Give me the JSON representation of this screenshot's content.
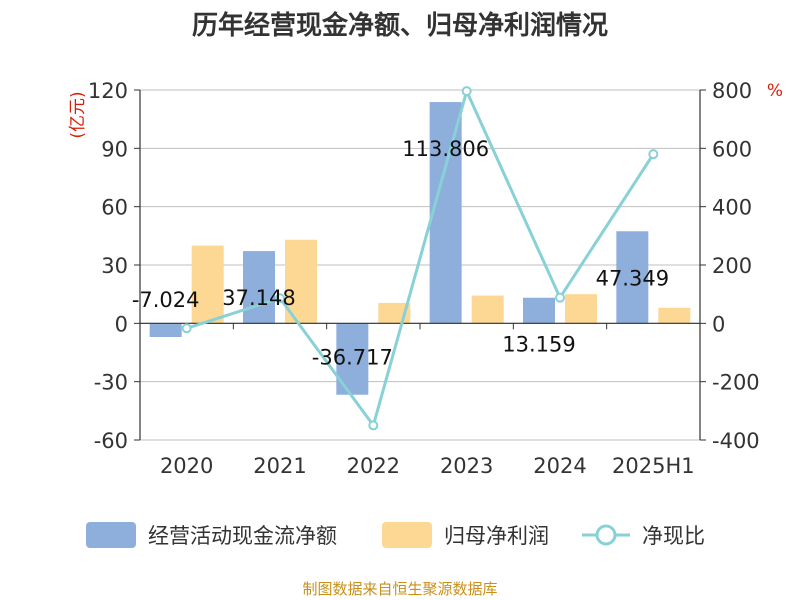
{
  "title": "历年经营现金净额、归母净利润情况",
  "source": "制图数据来自恒生聚源数据库",
  "colors": {
    "cashflow": "#8eaedb",
    "profit": "#fdd794",
    "ratio": "#88d1d6",
    "unit": "#d81e06",
    "title": "#333333",
    "source": "#c8901a"
  },
  "chart_data": {
    "type": "bar",
    "categories": [
      "2020",
      "2021",
      "2022",
      "2023",
      "2024",
      "2025H1"
    ],
    "series": [
      {
        "name": "经营活动现金流净额",
        "type": "bar",
        "axis": "left",
        "values": [
          -7.024,
          37.148,
          -36.717,
          113.806,
          13.159,
          47.349
        ],
        "value_labels": [
          "-7.024",
          "37.148",
          "-36.717",
          "113.806",
          "13.159",
          "47.349"
        ]
      },
      {
        "name": "归母净利润",
        "type": "bar",
        "axis": "left",
        "values": [
          40.0,
          43.0,
          10.5,
          14.3,
          15.0,
          8.0
        ]
      },
      {
        "name": "净现比",
        "type": "line",
        "axis": "right",
        "values": [
          -17,
          86,
          -350,
          796,
          88,
          580
        ]
      }
    ],
    "y_left": {
      "unit": "(亿元)",
      "ylim": [
        -60,
        120
      ],
      "ticks": [
        120,
        90,
        60,
        30,
        0,
        -30,
        -60
      ],
      "tick_labels": [
        "120",
        "90",
        "60",
        "30",
        "0",
        "-30",
        "-60"
      ]
    },
    "y_right": {
      "unit": "%",
      "ylim": [
        -400,
        800
      ],
      "ticks": [
        800,
        600,
        400,
        200,
        0,
        -200,
        -400
      ],
      "tick_labels": [
        "800",
        "600",
        "400",
        "200",
        "0",
        "-200",
        "-400"
      ]
    },
    "grid": true,
    "legend_position": "bottom"
  }
}
